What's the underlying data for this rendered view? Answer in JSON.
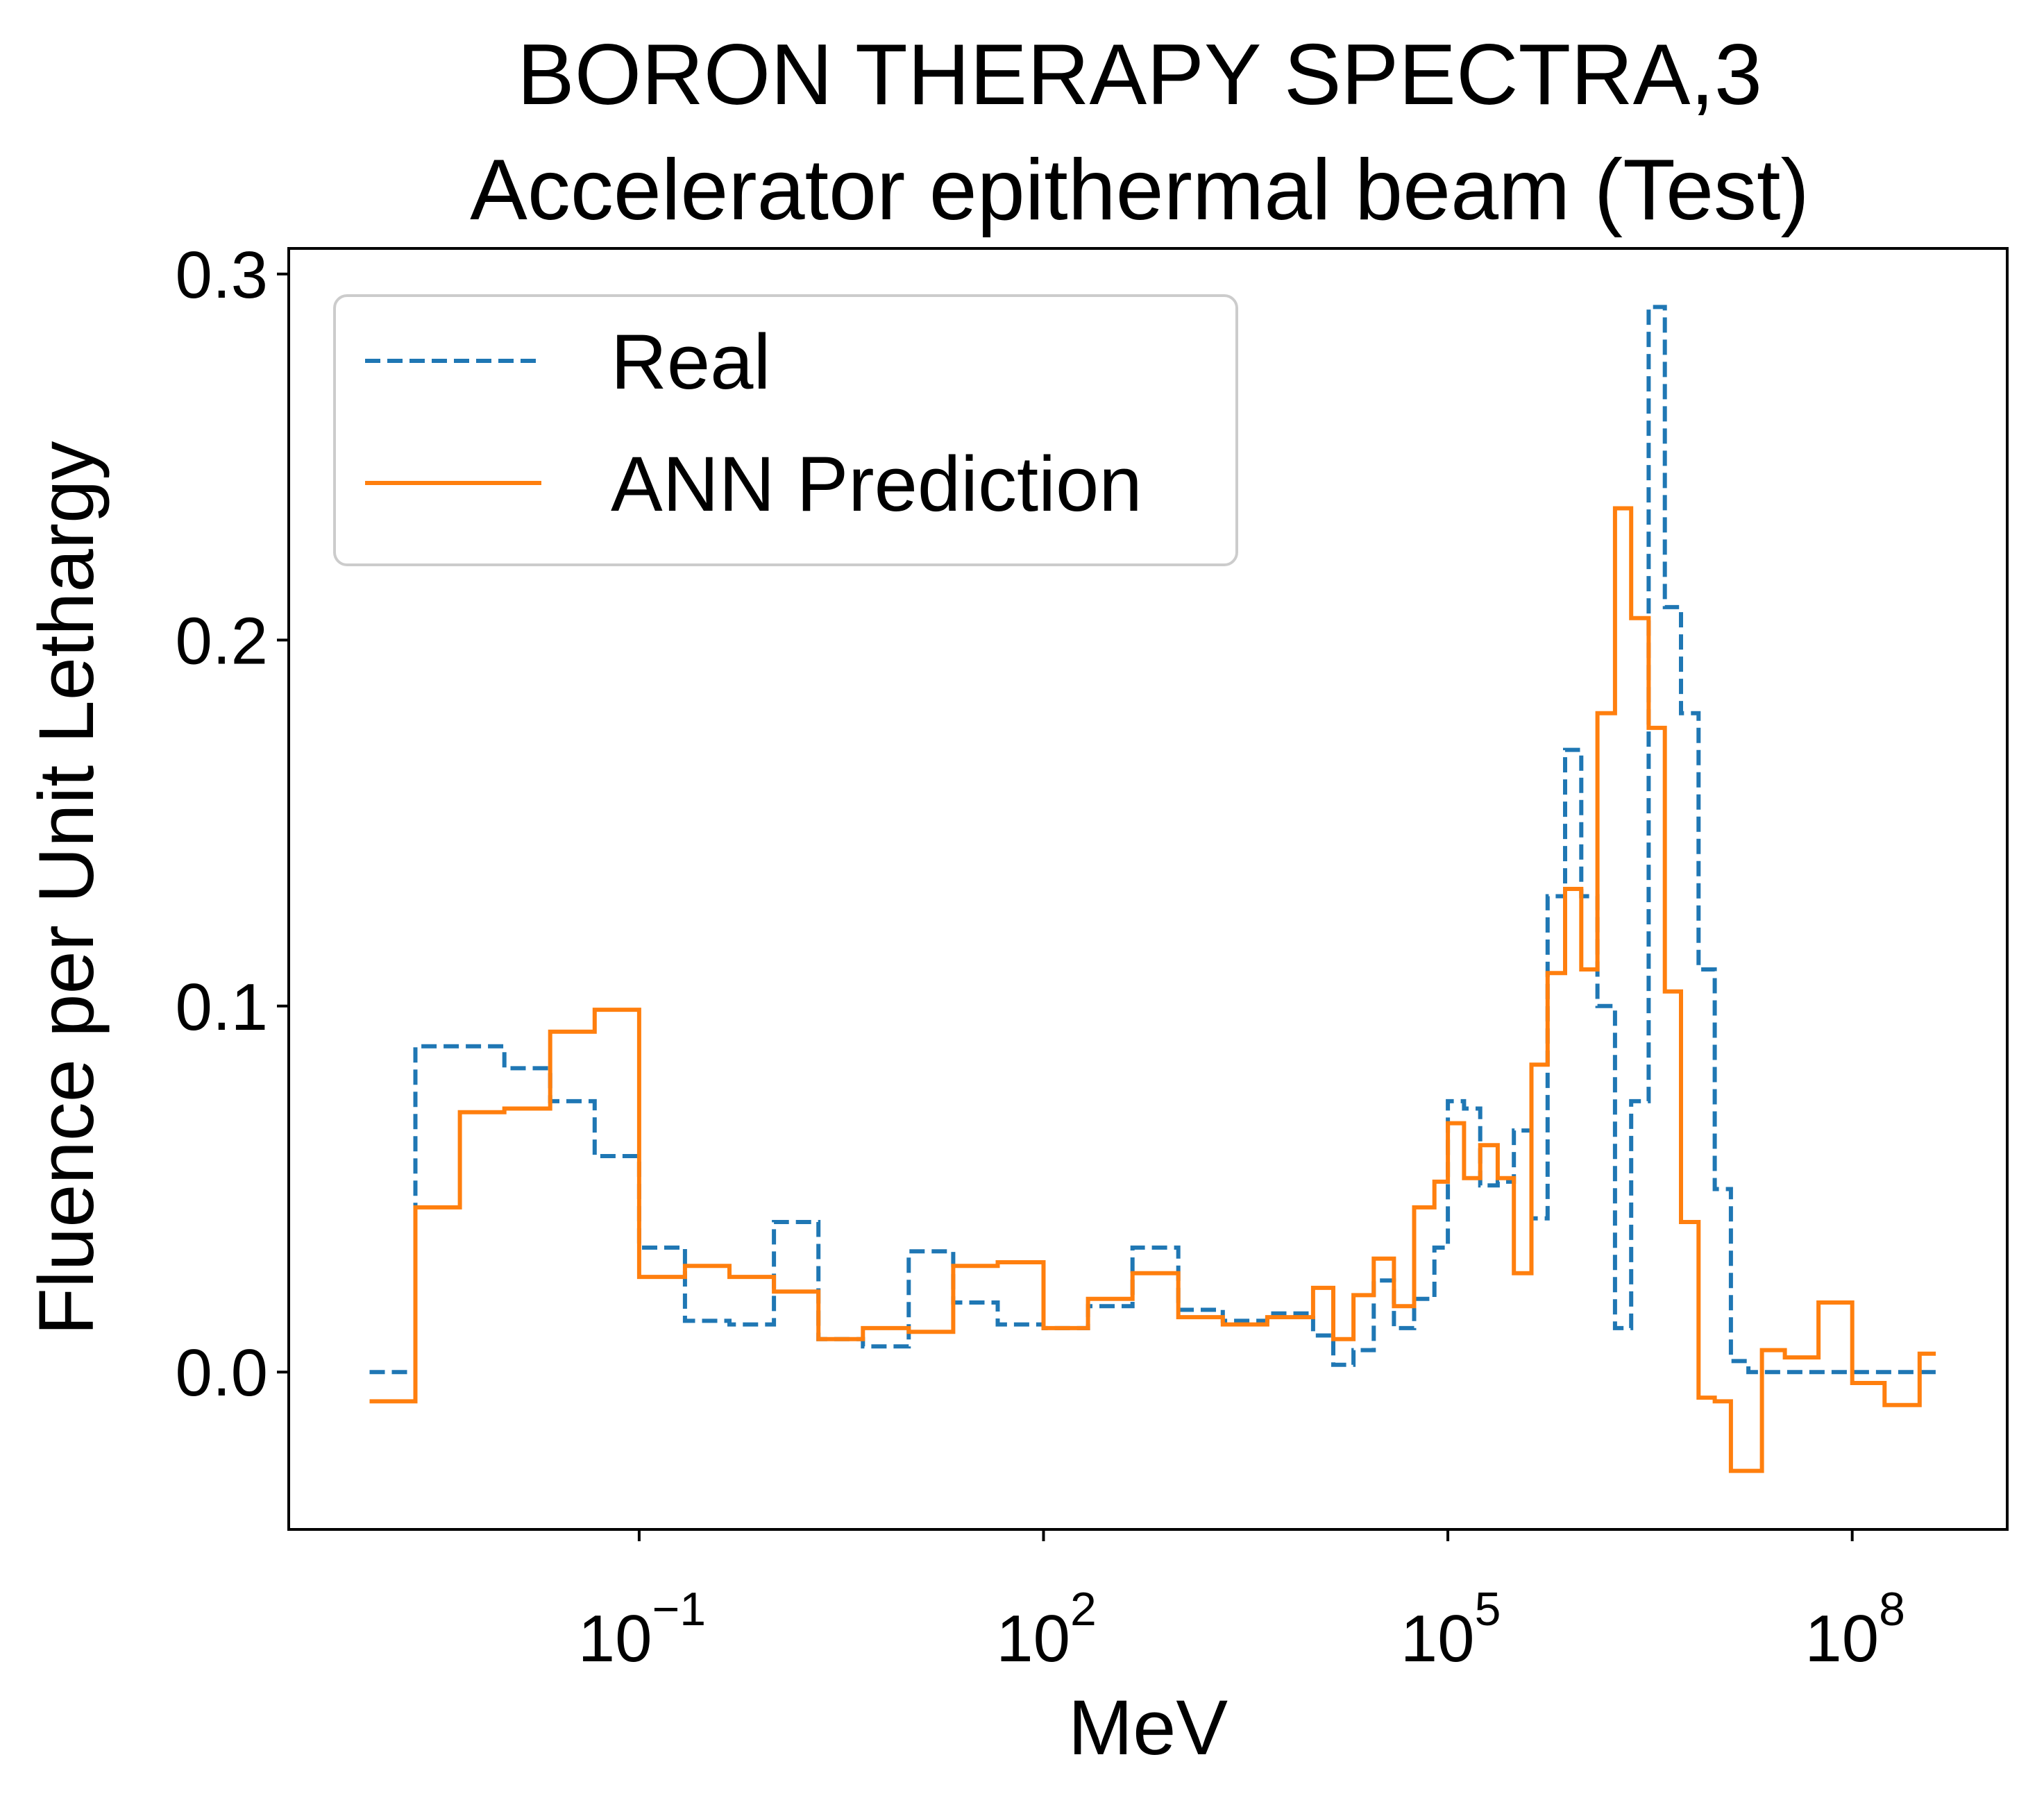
{
  "chart_data": {
    "type": "line",
    "title": "BORON THERAPY SPECTRA,3",
    "subtitle": "Accelerator epithermal beam (Test)",
    "xlabel": "MeV",
    "ylabel": "Fluence per Unit Lethargy",
    "xscale": "log",
    "xlim_log10": [
      -3.6,
      9.15
    ],
    "ylim": [
      -0.043,
      0.307
    ],
    "x_ticks": [
      {
        "base": "10",
        "exp": "−1",
        "log10": -1
      },
      {
        "base": "10",
        "exp": "2",
        "log10": 2
      },
      {
        "base": "10",
        "exp": "5",
        "log10": 5
      },
      {
        "base": "10",
        "exp": "8",
        "log10": 8
      }
    ],
    "y_ticks": [
      {
        "label": "0.0",
        "value": 0.0
      },
      {
        "label": "0.1",
        "value": 0.1
      },
      {
        "label": "0.2",
        "value": 0.2
      },
      {
        "label": "0.3",
        "value": 0.3
      }
    ],
    "grid": false,
    "legend_position": "top-left",
    "series": [
      {
        "name": "Real",
        "color": "#1f77b4",
        "style": "dashed",
        "edges_log10": [
          -3.0,
          -2.66,
          -2.0,
          -1.66,
          -1.33,
          -1.0,
          -0.66,
          -0.33,
          0.0,
          0.33,
          0.66,
          1.0,
          1.33,
          1.66,
          2.0,
          2.33,
          2.66,
          3.0,
          3.33,
          3.66,
          4.0,
          4.15,
          4.3,
          4.45,
          4.6,
          4.75,
          4.9,
          5.0,
          5.12,
          5.24,
          5.37,
          5.49,
          5.62,
          5.74,
          5.87,
          5.99,
          6.11,
          6.24,
          6.36,
          6.49,
          6.61,
          6.73,
          6.86,
          6.98,
          7.1,
          7.23,
          7.5,
          7.66,
          8.0,
          8.33,
          8.66
        ],
        "values": [
          0.0,
          0.089,
          0.083,
          0.074,
          0.059,
          0.034,
          0.014,
          0.013,
          0.041,
          0.009,
          0.007,
          0.033,
          0.019,
          0.013,
          0.012,
          0.018,
          0.034,
          0.017,
          0.014,
          0.016,
          0.01,
          0.002,
          0.006,
          0.025,
          0.012,
          0.02,
          0.034,
          0.074,
          0.072,
          0.051,
          0.052,
          0.066,
          0.042,
          0.13,
          0.17,
          0.13,
          0.1,
          0.012,
          0.074,
          0.291,
          0.209,
          0.18,
          0.11,
          0.05,
          0.003,
          0.0,
          0.0,
          0.0,
          0.0,
          0.0
        ]
      },
      {
        "name": "ANN Prediction",
        "color": "#ff7f0e",
        "style": "solid",
        "edges_log10": [
          -3.0,
          -2.66,
          -2.33,
          -2.0,
          -1.66,
          -1.33,
          -1.0,
          -0.66,
          -0.33,
          0.0,
          0.33,
          0.66,
          1.0,
          1.33,
          1.66,
          2.0,
          2.33,
          2.66,
          3.0,
          3.33,
          3.66,
          4.0,
          4.15,
          4.3,
          4.45,
          4.6,
          4.75,
          4.9,
          5.0,
          5.12,
          5.24,
          5.37,
          5.49,
          5.62,
          5.74,
          5.87,
          5.99,
          6.11,
          6.24,
          6.36,
          6.49,
          6.61,
          6.73,
          6.86,
          6.98,
          7.1,
          7.33,
          7.5,
          7.75,
          8.0,
          8.24,
          8.5,
          8.62
        ],
        "values": [
          -0.008,
          0.045,
          0.071,
          0.072,
          0.093,
          0.099,
          0.026,
          0.029,
          0.026,
          0.022,
          0.009,
          0.012,
          0.011,
          0.029,
          0.03,
          0.012,
          0.02,
          0.027,
          0.015,
          0.013,
          0.015,
          0.023,
          0.009,
          0.021,
          0.031,
          0.018,
          0.045,
          0.052,
          0.068,
          0.053,
          0.062,
          0.053,
          0.027,
          0.084,
          0.109,
          0.132,
          0.11,
          0.18,
          0.236,
          0.206,
          0.176,
          0.104,
          0.041,
          -0.007,
          -0.008,
          -0.027,
          0.006,
          0.004,
          0.019,
          -0.003,
          -0.009,
          0.005
        ]
      }
    ]
  }
}
